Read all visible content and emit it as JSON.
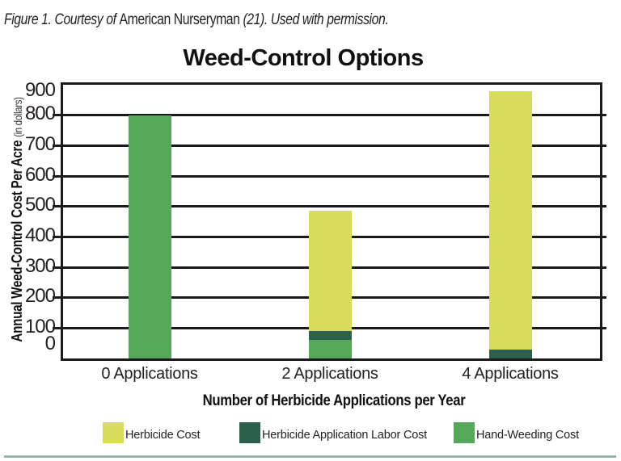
{
  "caption": {
    "italic_lead": "Figure 1. Courtesy of ",
    "source": "American Nurseryman",
    "italic_tail": " (21). Used with permission."
  },
  "chart_data": {
    "type": "bar",
    "stacked": true,
    "title": "Weed-Control Options",
    "categories": [
      "0 Applications",
      "2 Applications",
      "4 Applications"
    ],
    "series": [
      {
        "name": "Hand-Weeding Cost",
        "color": "#55a857",
        "values": [
          800,
          60,
          0
        ]
      },
      {
        "name": "Herbicide Application Labor Cost",
        "color": "#2d5f4d",
        "values": [
          0,
          30,
          30
        ]
      },
      {
        "name": "Herbicide Cost",
        "color": "#d8dc5c",
        "values": [
          0,
          395,
          850
        ]
      }
    ],
    "totals": [
      800,
      485,
      880
    ],
    "xlabel": "Number of Herbicide Applications per Year",
    "ylabel": "Annual Weed-Control Cost Per Acre",
    "ylabel_unit": "(in dollars)",
    "ylim": [
      0,
      900
    ],
    "ytick_step": 100,
    "yticks": [
      900,
      800,
      700,
      600,
      500,
      400,
      300,
      200,
      100,
      0
    ],
    "grid": true,
    "legend_position": "bottom"
  },
  "legend": [
    {
      "label": "Herbicide Cost",
      "color": "#d8dc5c"
    },
    {
      "label": "Herbicide Application Labor Cost",
      "color": "#2d5f4d"
    },
    {
      "label": "Hand-Weeding Cost",
      "color": "#55a857"
    }
  ],
  "colors": {
    "axis": "#1a1a1a",
    "text": "#231f20",
    "bottom_rule": "#9cb3a7"
  }
}
